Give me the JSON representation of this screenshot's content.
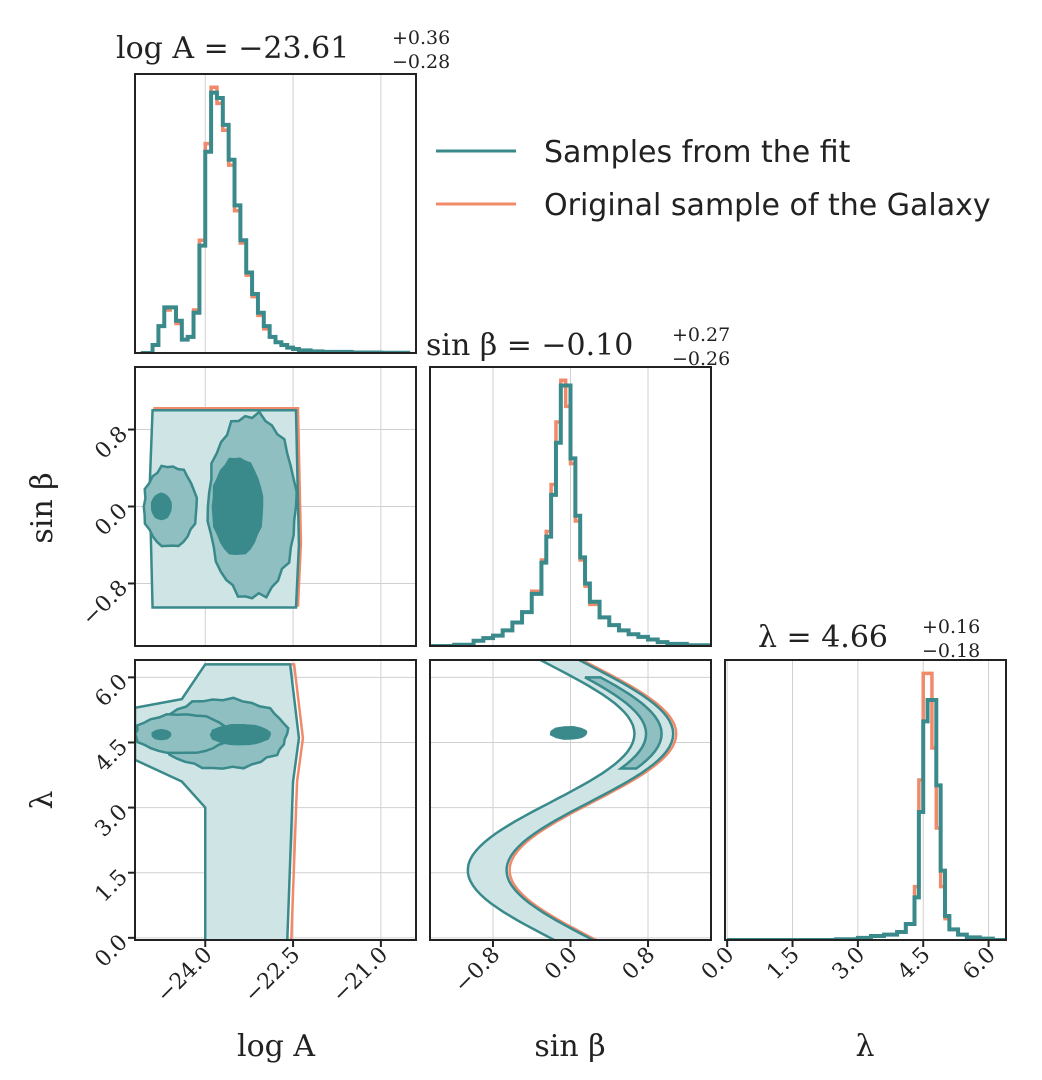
{
  "chart_data": {
    "type": "corner",
    "legend": {
      "placement": "top-right",
      "entries": [
        {
          "label": "Samples from the fit",
          "color": "#3a8a8c"
        },
        {
          "label": "Original sample of the Galaxy",
          "color": "#f08a6a"
        }
      ]
    },
    "colors": {
      "fit": "#3a8a8c",
      "orig": "#f08a6a",
      "fill_light": "#cfe5e5",
      "fill_mid": "#8fbfc0",
      "fill_dark": "#3a8a8c"
    },
    "grid": true,
    "parameters": [
      {
        "name": "logA",
        "axis_label": "log A",
        "range": [
          -25.2,
          -20.4
        ],
        "ticks": [
          -24.0,
          -22.5,
          -21.0
        ],
        "tick_labels": [
          "−24.0",
          "−22.5",
          "−21.0"
        ],
        "title": {
          "base": "log A = −23.61",
          "sup": "+0.36",
          "sub": "−0.28"
        }
      },
      {
        "name": "sinbeta",
        "axis_label": "sin β",
        "range": [
          -1.45,
          1.45
        ],
        "ticks": [
          -0.8,
          0.0,
          0.8
        ],
        "tick_labels": [
          "−0.8",
          "0.0",
          "0.8"
        ],
        "title": {
          "base": "sin β = −0.10",
          "sup": "+0.27",
          "sub": "−0.26"
        }
      },
      {
        "name": "lambda",
        "axis_label": "λ",
        "range": [
          -0.05,
          6.4
        ],
        "ticks": [
          0.0,
          1.5,
          3.0,
          4.5,
          6.0
        ],
        "tick_labels": [
          "0.0",
          "1.5",
          "3.0",
          "4.5",
          "6.0"
        ],
        "title": {
          "base": "λ = 4.66",
          "sup": "+0.16",
          "sub": "−0.18"
        }
      }
    ],
    "hist_logA": {
      "x": [
        -25.1,
        -24.9,
        -24.8,
        -24.7,
        -24.6,
        -24.5,
        -24.4,
        -24.3,
        -24.2,
        -24.1,
        -24.0,
        -23.9,
        -23.8,
        -23.7,
        -23.6,
        -23.5,
        -23.4,
        -23.3,
        -23.2,
        -23.1,
        -23.0,
        -22.9,
        -22.8,
        -22.7,
        -22.6,
        -22.5,
        -22.4,
        -22.2,
        -22.0,
        -21.5,
        -21.0,
        -20.5
      ],
      "fit": [
        0.0,
        0.03,
        0.1,
        0.17,
        0.17,
        0.12,
        0.05,
        0.06,
        0.15,
        0.4,
        0.75,
        0.97,
        0.95,
        0.85,
        0.72,
        0.55,
        0.42,
        0.3,
        0.22,
        0.15,
        0.1,
        0.06,
        0.04,
        0.03,
        0.02,
        0.015,
        0.01,
        0.006,
        0.004,
        0.002,
        0.001,
        0.0
      ],
      "orig": [
        0.0,
        0.03,
        0.1,
        0.16,
        0.17,
        0.11,
        0.05,
        0.06,
        0.16,
        0.42,
        0.78,
        0.99,
        0.93,
        0.83,
        0.7,
        0.53,
        0.41,
        0.29,
        0.21,
        0.14,
        0.09,
        0.06,
        0.04,
        0.03,
        0.02,
        0.015,
        0.01,
        0.006,
        0.004,
        0.002,
        0.001,
        0.0
      ]
    },
    "hist_sinbeta": {
      "x": [
        -1.45,
        -1.2,
        -1.0,
        -0.9,
        -0.8,
        -0.7,
        -0.6,
        -0.5,
        -0.4,
        -0.3,
        -0.25,
        -0.2,
        -0.15,
        -0.1,
        -0.05,
        0.0,
        0.05,
        0.1,
        0.15,
        0.2,
        0.3,
        0.4,
        0.5,
        0.6,
        0.7,
        0.8,
        0.9,
        1.0,
        1.2,
        1.45
      ],
      "fit": [
        0.0,
        0.005,
        0.02,
        0.03,
        0.04,
        0.06,
        0.09,
        0.13,
        0.2,
        0.32,
        0.42,
        0.58,
        0.78,
        1.0,
        1.0,
        0.72,
        0.5,
        0.34,
        0.24,
        0.17,
        0.11,
        0.08,
        0.06,
        0.045,
        0.035,
        0.025,
        0.015,
        0.008,
        0.003,
        0.0
      ],
      "orig": [
        0.0,
        0.005,
        0.02,
        0.03,
        0.04,
        0.06,
        0.09,
        0.13,
        0.21,
        0.33,
        0.44,
        0.62,
        0.86,
        1.02,
        0.92,
        0.7,
        0.48,
        0.33,
        0.23,
        0.16,
        0.11,
        0.08,
        0.06,
        0.045,
        0.035,
        0.025,
        0.015,
        0.008,
        0.003,
        0.0
      ]
    },
    "hist_lambda": {
      "x": [
        0.0,
        1.5,
        2.5,
        3.0,
        3.3,
        3.6,
        3.9,
        4.1,
        4.3,
        4.4,
        4.5,
        4.6,
        4.7,
        4.8,
        4.9,
        5.0,
        5.1,
        5.3,
        5.5,
        5.8,
        6.1,
        6.4
      ],
      "fit": [
        0.0,
        0.0,
        0.003,
        0.008,
        0.015,
        0.02,
        0.03,
        0.06,
        0.16,
        0.48,
        0.82,
        0.9,
        0.9,
        0.58,
        0.26,
        0.09,
        0.04,
        0.02,
        0.01,
        0.005,
        0.0,
        0.0
      ],
      "orig": [
        0.0,
        0.0,
        0.003,
        0.008,
        0.015,
        0.02,
        0.03,
        0.06,
        0.2,
        0.6,
        1.0,
        1.0,
        0.72,
        0.42,
        0.2,
        0.08,
        0.04,
        0.02,
        0.01,
        0.005,
        0.0,
        0.0
      ]
    }
  }
}
